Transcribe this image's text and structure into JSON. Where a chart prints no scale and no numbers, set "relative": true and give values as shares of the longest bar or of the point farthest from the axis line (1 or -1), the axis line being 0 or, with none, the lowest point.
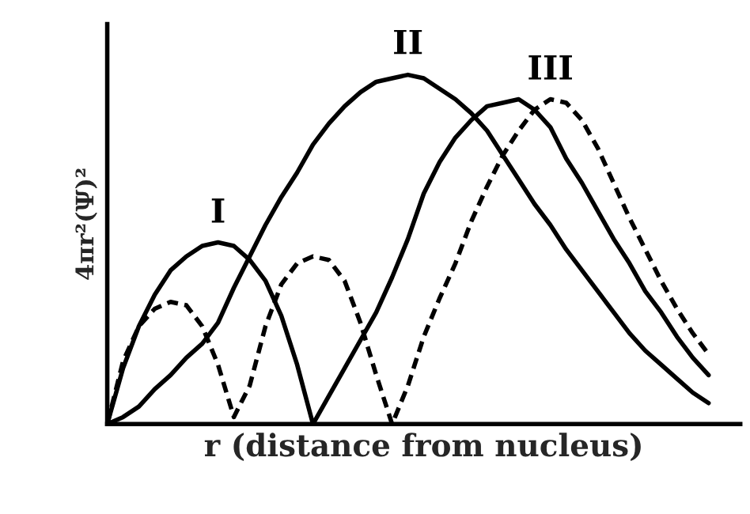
{
  "chart_data": {
    "type": "line",
    "relative": true,
    "xlabel": "r (distance from nucleus)",
    "ylabel": "4πr²(Ψ)²",
    "legend": false,
    "marker": "none",
    "categories": [
      null,
      null,
      null,
      null,
      null,
      null,
      null,
      null,
      null,
      null,
      null,
      null,
      null,
      null,
      null,
      null,
      null,
      null,
      null,
      null,
      null,
      null,
      null,
      null,
      null,
      null,
      null,
      null,
      null,
      null,
      null,
      null,
      null,
      null,
      null,
      null,
      null,
      null,
      null
    ],
    "series": [
      {
        "name": "I",
        "color": "#000000",
        "line_style": "solid",
        "values": [
          0,
          0.16,
          0.28,
          0.37,
          0.44,
          0.48,
          0.51,
          0.52,
          0.51,
          0.47,
          0.41,
          0.31,
          0.17,
          0,
          0.08,
          0.16,
          0.24,
          0.32,
          0.42,
          0.53,
          0.66,
          0.75,
          0.82,
          0.87,
          0.91,
          0.92,
          0.93,
          0.9,
          0.85,
          0.76,
          0.69,
          0.61,
          0.53,
          0.46,
          0.38,
          0.32,
          0.25,
          0.19,
          0.14
        ]
      },
      {
        "name": "II",
        "color": "#000000",
        "line_style": "solid",
        "values": [
          0,
          0.02,
          0.05,
          0.1,
          0.14,
          0.19,
          0.23,
          0.29,
          0.39,
          0.48,
          0.57,
          0.65,
          0.72,
          0.8,
          0.86,
          0.91,
          0.95,
          0.98,
          0.99,
          1,
          0.99,
          0.96,
          0.93,
          0.89,
          0.84,
          0.77,
          0.7,
          0.63,
          0.57,
          0.5,
          0.44,
          0.38,
          0.32,
          0.26,
          0.21,
          0.17,
          0.13,
          0.09,
          0.06
        ]
      },
      {
        "name": "III",
        "color": "#000000",
        "line_style": "dashed",
        "values": [
          0,
          0.18,
          0.28,
          0.33,
          0.35,
          0.34,
          0.28,
          0.17,
          0.02,
          0.11,
          0.28,
          0.4,
          0.46,
          0.48,
          0.47,
          0.41,
          0.29,
          0.14,
          0,
          0.11,
          0.25,
          0.36,
          0.46,
          0.58,
          0.68,
          0.77,
          0.84,
          0.9,
          0.93,
          0.92,
          0.87,
          0.79,
          0.69,
          0.59,
          0.5,
          0.41,
          0.33,
          0.26,
          0.2
        ]
      }
    ]
  }
}
